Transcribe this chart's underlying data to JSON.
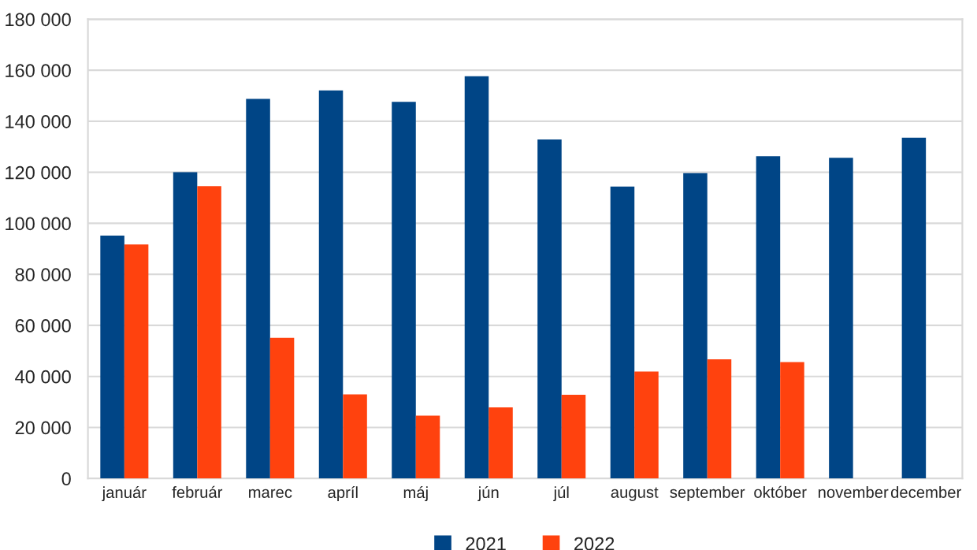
{
  "chart_data": {
    "type": "bar",
    "categories": [
      "január",
      "február",
      "marec",
      "apríl",
      "máj",
      "jún",
      "júl",
      "august",
      "september",
      "október",
      "november",
      "december"
    ],
    "series": [
      {
        "name": "2021",
        "color": "#004586",
        "values": [
          95200,
          120100,
          148800,
          152100,
          147600,
          157700,
          132900,
          114400,
          119700,
          126300,
          125700,
          133600
        ]
      },
      {
        "name": "2022",
        "color": "#ff420e",
        "values": [
          91700,
          114600,
          55100,
          33000,
          24600,
          27900,
          32800,
          41900,
          46700,
          45600,
          null,
          null
        ]
      }
    ],
    "ylim": [
      0,
      180000
    ],
    "yticks": [
      {
        "value": 0,
        "label": "0"
      },
      {
        "value": 20000,
        "label": "20 000"
      },
      {
        "value": 40000,
        "label": "40 000"
      },
      {
        "value": 60000,
        "label": "60 000"
      },
      {
        "value": 80000,
        "label": "80 000"
      },
      {
        "value": 100000,
        "label": "100 000"
      },
      {
        "value": 120000,
        "label": "120 000"
      },
      {
        "value": 140000,
        "label": "140 000"
      },
      {
        "value": 160000,
        "label": "160 000"
      },
      {
        "value": 180000,
        "label": "180 000"
      }
    ],
    "grid": "y",
    "legend": "bottom"
  }
}
